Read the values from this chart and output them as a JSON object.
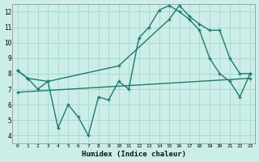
{
  "xlabel": "Humidex (Indice chaleur)",
  "bg_color": "#cceee8",
  "grid_color": "#add8d2",
  "line_color": "#1e7a6e",
  "xlim": [
    -0.5,
    23.5
  ],
  "ylim": [
    3.5,
    12.5
  ],
  "xticks": [
    0,
    1,
    2,
    3,
    4,
    5,
    6,
    7,
    8,
    9,
    10,
    11,
    12,
    13,
    14,
    15,
    16,
    17,
    18,
    19,
    20,
    21,
    22,
    23
  ],
  "yticks": [
    4,
    5,
    6,
    7,
    8,
    9,
    10,
    11,
    12
  ],
  "curve1_x": [
    0,
    1,
    2,
    3,
    4,
    5,
    6,
    7,
    8,
    9,
    10,
    11,
    12,
    13,
    14,
    15,
    16,
    17,
    18,
    19,
    20,
    21,
    22,
    23
  ],
  "curve1_y": [
    8.2,
    7.7,
    7.0,
    7.5,
    4.5,
    6.0,
    5.2,
    4.0,
    6.5,
    6.3,
    7.5,
    7.0,
    10.3,
    11.0,
    12.1,
    12.4,
    12.0,
    11.5,
    10.8,
    9.0,
    8.0,
    7.5,
    6.5,
    8.0
  ],
  "curve2_x": [
    0,
    1,
    3,
    10,
    15,
    16,
    17,
    18,
    19,
    20,
    21,
    22,
    23
  ],
  "curve2_y": [
    8.2,
    7.7,
    7.5,
    8.5,
    11.5,
    12.4,
    11.7,
    11.2,
    10.8,
    10.8,
    9.0,
    8.0,
    8.0
  ],
  "curve3_x": [
    0,
    23
  ],
  "curve3_y": [
    6.8,
    7.7
  ],
  "marker_size": 3,
  "line_width": 1.0
}
